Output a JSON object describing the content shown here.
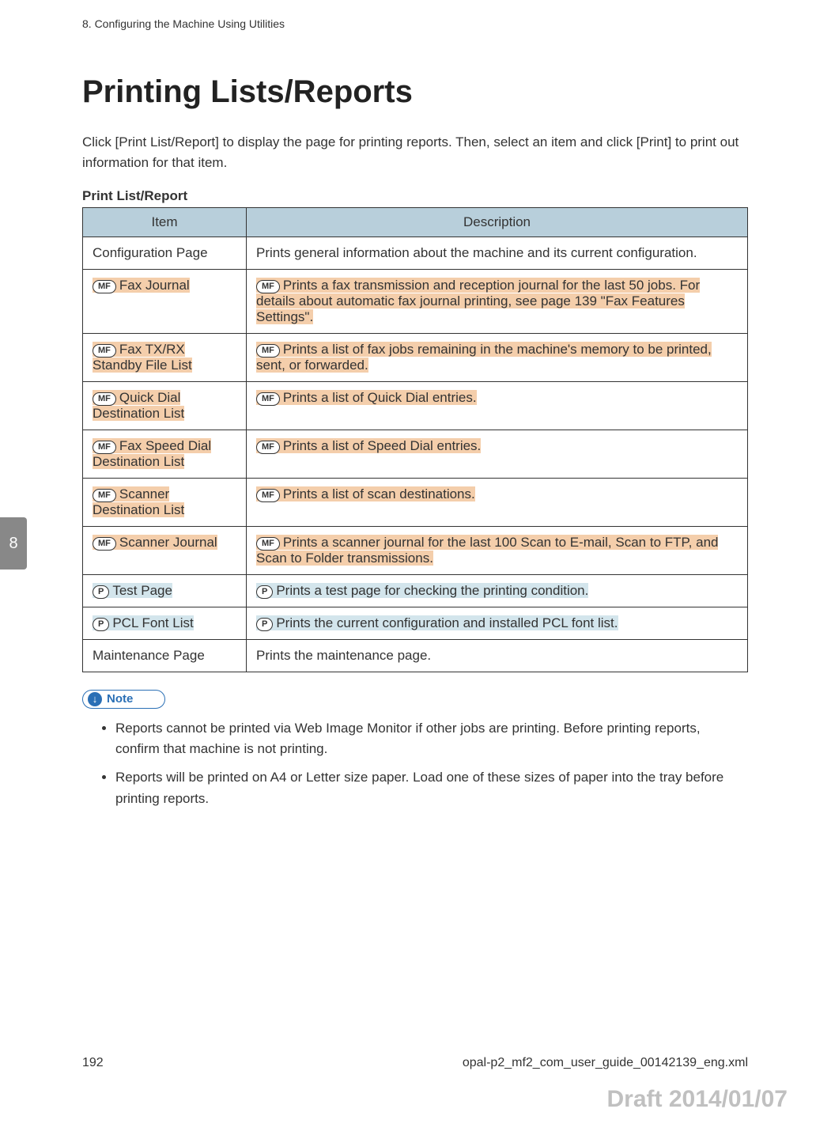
{
  "header": {
    "running": "8. Configuring the Machine Using Utilities",
    "chapter_tab": "8"
  },
  "title": "Printing Lists/Reports",
  "intro": "Click [Print List/Report] to display the page for printing reports. Then, select an item and click [Print] to print out information for that item.",
  "subheading": "Print List/Report",
  "badges": {
    "mf": "MF",
    "p": "P"
  },
  "table": {
    "columns": {
      "item": "Item",
      "desc": "Description"
    },
    "rows": [
      {
        "badge": null,
        "item": "Configuration Page",
        "desc": "Prints general information about the machine and its current configuration."
      },
      {
        "badge": "mf",
        "item": "Fax Journal",
        "desc": "Prints a fax transmission and reception journal for the last 50 jobs. For details about automatic fax journal printing, see page 139 \"Fax Features Settings\"."
      },
      {
        "badge": "mf",
        "item": "Fax TX/RX Standby File List",
        "desc": "Prints a list of fax jobs remaining in the machine's memory to be printed, sent, or forwarded."
      },
      {
        "badge": "mf",
        "item": "Quick Dial Destination List",
        "desc": "Prints a list of Quick Dial entries."
      },
      {
        "badge": "mf",
        "item": "Fax Speed Dial Destination List",
        "desc": "Prints a list of Speed Dial entries."
      },
      {
        "badge": "mf",
        "item": "Scanner Destination List",
        "desc": "Prints a list of scan destinations."
      },
      {
        "badge": "mf",
        "item": "Scanner Journal",
        "desc": "Prints a scanner journal for the last 100 Scan to E-mail, Scan to FTP, and Scan to Folder transmissions."
      },
      {
        "badge": "p",
        "item": "Test Page",
        "desc": "Prints a test page for checking the printing condition."
      },
      {
        "badge": "p",
        "item": "PCL Font List",
        "desc": "Prints the current configuration and installed PCL font list."
      },
      {
        "badge": null,
        "item": "Maintenance Page",
        "desc": "Prints the maintenance page."
      }
    ]
  },
  "note": {
    "label": "Note",
    "items": [
      "Reports cannot be printed via Web Image Monitor if other jobs are printing. Before printing reports, confirm that machine is not printing.",
      "Reports will be printed on A4 or Letter size paper. Load one of these sizes of paper into the tray before printing reports."
    ]
  },
  "footer": {
    "page_number": "192",
    "source_file": "opal-p2_mf2_com_user_guide_00142139_eng.xml",
    "draft": "Draft 2014/01/07"
  },
  "colors": {
    "table_header_bg": "#b8cfdb",
    "mf_highlight_bg": "#f4ceab",
    "p_highlight_bg": "#d3e5ec",
    "chapter_tab_bg": "#888888",
    "note_accent": "#2a6fb5",
    "draft_color": "#c0c0c0"
  }
}
